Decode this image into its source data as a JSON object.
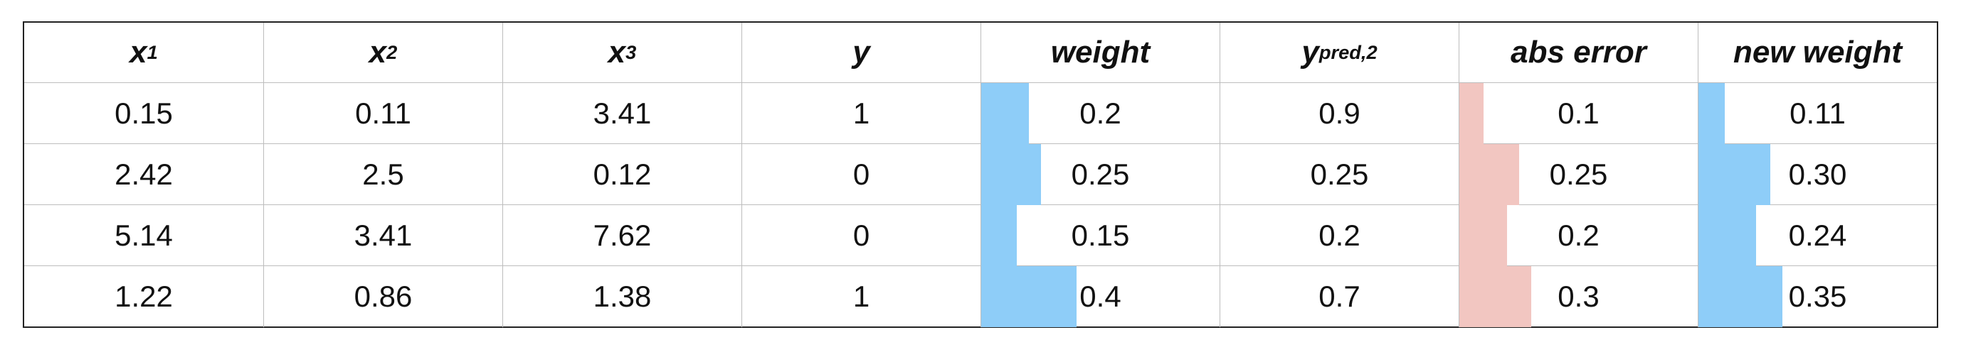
{
  "columns": [
    {
      "base": "x",
      "sub": "1"
    },
    {
      "base": "x",
      "sub": "2"
    },
    {
      "base": "x",
      "sub": "3"
    },
    {
      "base": "y",
      "sub": ""
    },
    {
      "base": "weight",
      "sub": ""
    },
    {
      "base": "y",
      "sub": "pred,2"
    },
    {
      "base": "abs error",
      "sub": ""
    },
    {
      "base": "new weight",
      "sub": ""
    }
  ],
  "rows": [
    {
      "cells": [
        "0.15",
        "0.11",
        "3.41",
        "1",
        "0.2",
        "0.9",
        "0.1",
        "0.11"
      ]
    },
    {
      "cells": [
        "2.42",
        "2.5",
        "0.12",
        "0",
        "0.25",
        "0.25",
        "0.25",
        "0.30"
      ]
    },
    {
      "cells": [
        "5.14",
        "3.41",
        "7.62",
        "0",
        "0.15",
        "0.2",
        "0.2",
        "0.24"
      ]
    },
    {
      "cells": [
        "1.22",
        "0.86",
        "1.38",
        "1",
        "0.4",
        "0.7",
        "0.3",
        "0.35"
      ]
    }
  ],
  "bar_columns": {
    "weight": {
      "column_index": 4,
      "color": "#8ecdf8",
      "max_value": 1.0
    },
    "abs_error": {
      "column_index": 6,
      "color": "#f2c6c1",
      "max_value": 1.0
    },
    "new_weight": {
      "column_index": 7,
      "color": "#8ecdf8",
      "max_value": 1.0
    }
  }
}
